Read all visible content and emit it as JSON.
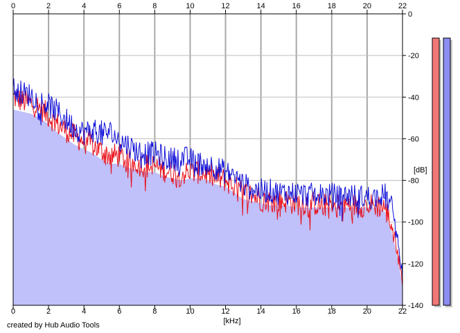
{
  "chart_data": {
    "type": "area",
    "title": "",
    "xlabel": "[kHz]",
    "ylabel": "[dB]",
    "xlim": [
      0,
      22
    ],
    "ylim": [
      -140,
      0
    ],
    "x_ticks": [
      "0",
      "2",
      "4",
      "6",
      "8",
      "10",
      "12",
      "14",
      "16",
      "18",
      "20",
      "22"
    ],
    "y_ticks": [
      "0",
      "-20",
      "-40",
      "-60",
      "-80",
      "-100",
      "-120",
      "-140"
    ],
    "grid": true,
    "series": [
      {
        "color": "#e8101a",
        "x": [
          0,
          0.5,
          1,
          1.5,
          2,
          2.5,
          3,
          3.5,
          4,
          4.5,
          5,
          5.5,
          6,
          6.5,
          7,
          7.5,
          8,
          8.5,
          9,
          9.5,
          10,
          10.5,
          11,
          11.5,
          12,
          12.5,
          13,
          13.5,
          14,
          14.5,
          15,
          15.5,
          16,
          16.5,
          17,
          17.5,
          18,
          18.5,
          19,
          19.5,
          20,
          20.5,
          21,
          21.5,
          22
        ],
        "y": [
          -40,
          -42,
          -43,
          -45,
          -49,
          -53,
          -56,
          -59,
          -61,
          -63,
          -66,
          -68,
          -68,
          -71,
          -72,
          -73,
          -73,
          -75,
          -76,
          -77,
          -76,
          -76,
          -77,
          -79,
          -80,
          -83,
          -86,
          -87,
          -89,
          -90,
          -90,
          -90,
          -91,
          -91,
          -91,
          -92,
          -92,
          -92,
          -92,
          -92,
          -92,
          -92,
          -93,
          -104,
          -128
        ]
      },
      {
        "color": "#1010d8",
        "x": [
          0,
          0.5,
          1,
          1.5,
          2,
          2.5,
          3,
          3.5,
          4,
          4.5,
          5,
          5.5,
          6,
          6.5,
          7,
          7.5,
          8,
          8.5,
          9,
          9.5,
          10,
          10.5,
          11,
          11.5,
          12,
          12.5,
          13,
          13.5,
          14,
          14.5,
          15,
          15.5,
          16,
          16.5,
          17,
          17.5,
          18,
          18.5,
          19,
          19.5,
          20,
          20.5,
          21,
          21.5,
          22
        ],
        "y": [
          -36,
          -38,
          -39,
          -42,
          -44,
          -47,
          -51,
          -55,
          -57,
          -56,
          -57,
          -57,
          -61,
          -63,
          -66,
          -67,
          -67,
          -69,
          -70,
          -69,
          -70,
          -72,
          -72,
          -74,
          -76,
          -78,
          -82,
          -84,
          -85,
          -85,
          -86,
          -86,
          -86,
          -87,
          -87,
          -87,
          -87,
          -88,
          -87,
          -88,
          -88,
          -88,
          -87,
          -95,
          -125
        ]
      },
      {
        "color": "#c0c0fa",
        "x": [
          0,
          0.5,
          1,
          1.5,
          2,
          2.5,
          3,
          3.5,
          4,
          4.5,
          5,
          5.5,
          6,
          6.5,
          7,
          7.5,
          8,
          8.5,
          9,
          9.5,
          10,
          10.5,
          11,
          11.5,
          12,
          12.5,
          13,
          13.5,
          14,
          14.5,
          15,
          15.5,
          16,
          16.5,
          17,
          17.5,
          18,
          18.5,
          19,
          19.5,
          20,
          20.5,
          21,
          21.5,
          22
        ],
        "y": [
          -46,
          -47,
          -48,
          -50,
          -53,
          -57,
          -60,
          -63,
          -65,
          -67,
          -70,
          -72,
          -72,
          -74,
          -75,
          -76,
          -76,
          -78,
          -79,
          -80,
          -79,
          -79,
          -80,
          -82,
          -83,
          -86,
          -89,
          -90,
          -91,
          -92,
          -92,
          -92,
          -93,
          -93,
          -93,
          -93,
          -93,
          -93,
          -93,
          -93,
          -93,
          -93,
          -95,
          -108,
          -130
        ]
      }
    ],
    "meter_colors": [
      "#f07878",
      "#8c8cf2"
    ]
  },
  "xlabel": "[kHz]",
  "ylabel": "[dB]",
  "credit": "created by Hub Audio Tools"
}
